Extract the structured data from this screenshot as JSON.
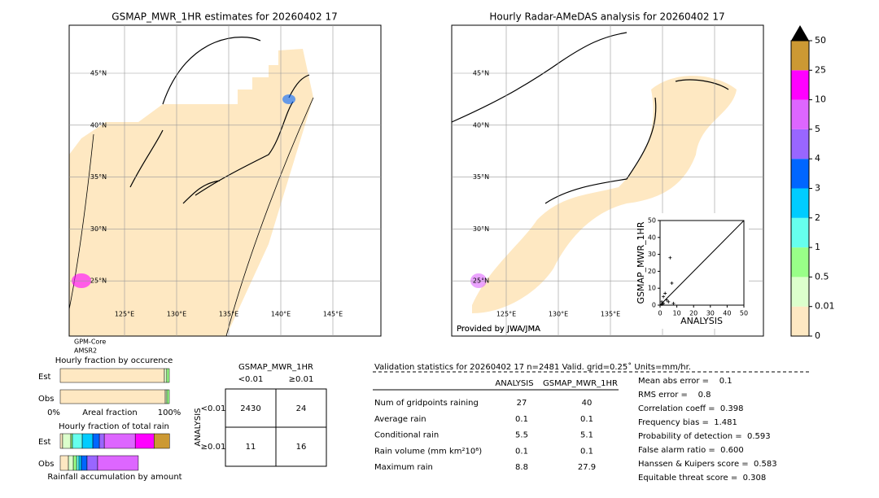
{
  "left_map": {
    "title": "GSMAP_MWR_1HR estimates for 20260402 17",
    "lat_labels": [
      "45°N",
      "40°N",
      "35°N",
      "30°N",
      "25°N"
    ],
    "lon_labels": [
      "125°E",
      "130°E",
      "135°E",
      "140°E",
      "145°E"
    ],
    "sensor_labels": [
      "GPM-Core",
      "AMSR2"
    ]
  },
  "right_map": {
    "title": "Hourly Radar-AMeDAS analysis for 20260402 17",
    "lat_labels": [
      "45°N",
      "40°N",
      "35°N",
      "30°N",
      "25°N"
    ],
    "lon_labels": [
      "125°E",
      "130°E",
      "135°E"
    ],
    "credit": "Provided by JWA/JMA"
  },
  "scatter": {
    "x_label": "ANALYSIS",
    "y_label": "GSMAP_MWR_1HR",
    "xlim": [
      0,
      50
    ],
    "ylim": [
      0,
      50
    ],
    "xticks": [
      0,
      10,
      20,
      30,
      40,
      50
    ],
    "yticks": [
      0,
      10,
      20,
      30,
      40,
      50
    ],
    "x": [
      6,
      7,
      3,
      2,
      4,
      5,
      2,
      1,
      8,
      1
    ],
    "y": [
      28,
      13,
      7,
      5,
      3,
      2,
      1,
      2,
      1,
      0.5
    ]
  },
  "colorbar": {
    "levels": [
      0,
      0.01,
      0.5,
      1,
      2,
      3,
      4,
      5,
      10,
      25,
      50
    ],
    "colors": [
      "#fee8c2",
      "#dcffcc",
      "#99ff88",
      "#66ffee",
      "#00ccff",
      "#0066ff",
      "#9966ff",
      "#dd66ff",
      "#ff00ff",
      "#cc9933"
    ]
  },
  "occurrence": {
    "title": "Hourly fraction by occurence",
    "rows": [
      "Est",
      "Obs"
    ],
    "axis_left": "0%",
    "axis_label": "Areal fraction",
    "axis_right": "100%",
    "est": [
      95.5,
      2.2,
      2.3
    ],
    "obs": [
      96.3,
      1.5,
      2.2
    ]
  },
  "total_rain": {
    "title": "Hourly fraction of total rain",
    "rows": [
      "Est",
      "Obs"
    ],
    "footer": "Rainfall accumulation by amount",
    "est": [
      2.2,
      7.5,
      1.5,
      9,
      9.7,
      6,
      4.5,
      28.4,
      17.2,
      14.2
    ],
    "obs": [
      7.5,
      4.5,
      3,
      2.2,
      2.2,
      5.2,
      9.7,
      37.3
    ]
  },
  "contingency": {
    "title": "GSMAP_MWR_1HR",
    "col_labels": [
      "<0.01",
      "≥0.01"
    ],
    "row_labels": [
      "<0.01",
      "≥0.01"
    ],
    "row_axis": "ANALYSIS",
    "cells": [
      [
        2430,
        24
      ],
      [
        11,
        16
      ]
    ]
  },
  "validation": {
    "title": "Validation statistics for 20260402 17  n=2481 Valid. grid=0.25˚ Units=mm/hr.",
    "headers": [
      "ANALYSIS",
      "GSMAP_MWR_1HR"
    ],
    "rows": [
      {
        "label": "Num of gridpoints raining",
        "analysis": 27,
        "gsmap": 40
      },
      {
        "label": "Average rain",
        "analysis": 0.1,
        "gsmap": 0.1
      },
      {
        "label": "Conditional rain",
        "analysis": 5.5,
        "gsmap": 5.1
      },
      {
        "label": "Rain volume (mm km²10⁶)",
        "analysis": 0.1,
        "gsmap": 0.1
      },
      {
        "label": "Maximum rain",
        "analysis": 8.8,
        "gsmap": 27.9
      }
    ],
    "scores": [
      "Mean abs error =    0.1",
      "RMS error =    0.8",
      "Correlation coeff =  0.398",
      "Frequency bias =  1.481",
      "Probability of detection =  0.593",
      "False alarm ratio =  0.600",
      "Hanssen & Kuipers score =  0.583",
      "Equitable threat score =  0.308"
    ]
  }
}
